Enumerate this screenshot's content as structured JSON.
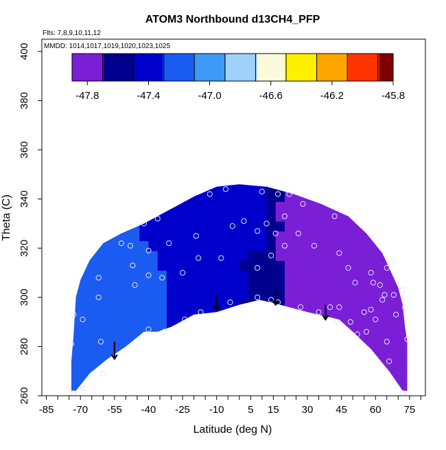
{
  "chart_data": {
    "type": "heatmap",
    "title": "ATOM3 Northbound d13CH4_PFP",
    "annotations": {
      "flights": "Flts: 7,8,9,10,11,12",
      "dates": "MMDD: 1014,1017,1019,1020,1023,1025"
    },
    "xlabel": "Latitude (deg N)",
    "ylabel": "Theta (C)",
    "xlim": [
      -87,
      82
    ],
    "ylim": [
      260,
      405
    ],
    "xticks": [
      -85,
      -70,
      -55,
      -40,
      -25,
      -10,
      5,
      15,
      30,
      45,
      60,
      75
    ],
    "yticks": [
      260,
      280,
      300,
      320,
      340,
      360,
      380,
      400
    ],
    "colorbar": {
      "range": [
        -47.9,
        -45.8
      ],
      "ticks": [
        -47.8,
        -47.4,
        -47.0,
        -46.6,
        -46.2,
        -45.8
      ],
      "tick_labels": [
        "-47.8",
        "-47.4",
        "-47.0",
        "-46.6",
        "-46.2",
        "-45.8"
      ],
      "breaks": [
        -47.9,
        -47.7,
        -47.5,
        -47.3,
        -47.1,
        -46.9,
        -46.7,
        -46.5,
        -46.3,
        -46.1,
        -45.9
      ],
      "colors": [
        "#7a1fd6",
        "#00008f",
        "#0000cc",
        "#1a5cf2",
        "#3f9af7",
        "#9fd1fa",
        "#fafadc",
        "#fff000",
        "#ffa500",
        "#ff3300",
        "#cc0000",
        "#7f0000"
      ]
    },
    "domain_upper": [
      [
        -74,
        274
      ],
      [
        -73,
        285
      ],
      [
        -72,
        300
      ],
      [
        -70,
        307
      ],
      [
        -66,
        315
      ],
      [
        -60,
        322
      ],
      [
        -52,
        326
      ],
      [
        -42,
        330
      ],
      [
        -30,
        336
      ],
      [
        -20,
        341
      ],
      [
        -10,
        345
      ],
      [
        0,
        346
      ],
      [
        12,
        345
      ],
      [
        24,
        342
      ],
      [
        36,
        338
      ],
      [
        48,
        333
      ],
      [
        56,
        326
      ],
      [
        63,
        318
      ],
      [
        67,
        310
      ],
      [
        70,
        304
      ],
      [
        72,
        297
      ],
      [
        73,
        288
      ],
      [
        74,
        282
      ]
    ],
    "domain_lower": [
      [
        74,
        262
      ],
      [
        72,
        262
      ],
      [
        66,
        270
      ],
      [
        58,
        279
      ],
      [
        50,
        286
      ],
      [
        44,
        291
      ],
      [
        30,
        294
      ],
      [
        18,
        297
      ],
      [
        9,
        299
      ],
      [
        0,
        297
      ],
      [
        -10,
        294
      ],
      [
        -20,
        293
      ],
      [
        -30,
        288
      ],
      [
        -36,
        286
      ],
      [
        -42,
        286
      ],
      [
        -50,
        280
      ],
      [
        -58,
        275
      ],
      [
        -66,
        269
      ],
      [
        -72,
        262
      ],
      [
        -74,
        262
      ]
    ],
    "field_points": [
      {
        "lat": -70,
        "theta": 300,
        "value": -47.2
      },
      {
        "lat": -60,
        "theta": 318,
        "value": -47.15
      },
      {
        "lat": -56,
        "theta": 290,
        "value": -47.2
      },
      {
        "lat": -45,
        "theta": 305,
        "value": -47.25
      },
      {
        "lat": -40,
        "theta": 325,
        "value": -47.3
      },
      {
        "lat": -30,
        "theta": 300,
        "value": -47.3
      },
      {
        "lat": -25,
        "theta": 330,
        "value": -47.4
      },
      {
        "lat": -15,
        "theta": 310,
        "value": -47.4
      },
      {
        "lat": -10,
        "theta": 338,
        "value": -47.45
      },
      {
        "lat": -5,
        "theta": 305,
        "value": -47.35
      },
      {
        "lat": 5,
        "theta": 325,
        "value": -47.4
      },
      {
        "lat": 12,
        "theta": 312,
        "value": -47.65
      },
      {
        "lat": 15,
        "theta": 300,
        "value": -47.7
      },
      {
        "lat": 22,
        "theta": 320,
        "value": -47.75
      },
      {
        "lat": 25,
        "theta": 335,
        "value": -47.75
      },
      {
        "lat": 30,
        "theta": 305,
        "value": -47.75
      },
      {
        "lat": 35,
        "theta": 325,
        "value": -47.7
      },
      {
        "lat": 40,
        "theta": 300,
        "value": -47.75
      },
      {
        "lat": 45,
        "theta": 315,
        "value": -47.75
      },
      {
        "lat": 50,
        "theta": 295,
        "value": -47.75
      },
      {
        "lat": 55,
        "theta": 290,
        "value": -47.85
      },
      {
        "lat": 60,
        "theta": 300,
        "value": -47.75
      },
      {
        "lat": 65,
        "theta": 285,
        "value": -47.75
      },
      {
        "lat": 70,
        "theta": 270,
        "value": -47.7
      },
      {
        "lat": 68,
        "theta": 300,
        "value": -47.7
      },
      {
        "lat": 0,
        "theta": 340,
        "value": -47.35
      }
    ],
    "samples": [
      {
        "lat": -73,
        "theta": 261
      },
      {
        "lat": -74,
        "theta": 281
      },
      {
        "lat": -73,
        "theta": 293
      },
      {
        "lat": -69,
        "theta": 263
      },
      {
        "lat": -69,
        "theta": 291
      },
      {
        "lat": -62,
        "theta": 308
      },
      {
        "lat": -62,
        "theta": 300
      },
      {
        "lat": -61,
        "theta": 282
      },
      {
        "lat": -60,
        "theta": 269
      },
      {
        "lat": -52,
        "theta": 322
      },
      {
        "lat": -48,
        "theta": 321
      },
      {
        "lat": -47,
        "theta": 313
      },
      {
        "lat": -46,
        "theta": 305
      },
      {
        "lat": -42,
        "theta": 330
      },
      {
        "lat": -40,
        "theta": 319
      },
      {
        "lat": -40,
        "theta": 309
      },
      {
        "lat": -40,
        "theta": 287
      },
      {
        "lat": -36,
        "theta": 332
      },
      {
        "lat": -34,
        "theta": 308
      },
      {
        "lat": -33,
        "theta": 286
      },
      {
        "lat": -31,
        "theta": 322
      },
      {
        "lat": -25,
        "theta": 310
      },
      {
        "lat": -24,
        "theta": 291
      },
      {
        "lat": -19,
        "theta": 325
      },
      {
        "lat": -18,
        "theta": 316
      },
      {
        "lat": -17,
        "theta": 294
      },
      {
        "lat": -13,
        "theta": 342
      },
      {
        "lat": -8,
        "theta": 316
      },
      {
        "lat": -6,
        "theta": 344
      },
      {
        "lat": -4,
        "theta": 298
      },
      {
        "lat": -3,
        "theta": 329
      },
      {
        "lat": 2,
        "theta": 331
      },
      {
        "lat": 8,
        "theta": 300
      },
      {
        "lat": 8,
        "theta": 312
      },
      {
        "lat": 8,
        "theta": 327
      },
      {
        "lat": 10,
        "theta": 343
      },
      {
        "lat": 12,
        "theta": 330
      },
      {
        "lat": 14,
        "theta": 299
      },
      {
        "lat": 14,
        "theta": 317
      },
      {
        "lat": 16,
        "theta": 326
      },
      {
        "lat": 17,
        "theta": 298
      },
      {
        "lat": 17,
        "theta": 342
      },
      {
        "lat": 20,
        "theta": 321
      },
      {
        "lat": 20,
        "theta": 333
      },
      {
        "lat": 22,
        "theta": 342
      },
      {
        "lat": 26,
        "theta": 326
      },
      {
        "lat": 27,
        "theta": 296
      },
      {
        "lat": 28,
        "theta": 338
      },
      {
        "lat": 33,
        "theta": 321
      },
      {
        "lat": 35,
        "theta": 294
      },
      {
        "lat": 40,
        "theta": 296
      },
      {
        "lat": 42,
        "theta": 333
      },
      {
        "lat": 43,
        "theta": 290
      },
      {
        "lat": 44,
        "theta": 318
      },
      {
        "lat": 44,
        "theta": 296
      },
      {
        "lat": 48,
        "theta": 312
      },
      {
        "lat": 49,
        "theta": 290
      },
      {
        "lat": 51,
        "theta": 306
      },
      {
        "lat": 52,
        "theta": 285
      },
      {
        "lat": 55,
        "theta": 294
      },
      {
        "lat": 56,
        "theta": 286
      },
      {
        "lat": 58,
        "theta": 310
      },
      {
        "lat": 58,
        "theta": 295
      },
      {
        "lat": 59,
        "theta": 306
      },
      {
        "lat": 60,
        "theta": 291
      },
      {
        "lat": 62,
        "theta": 305
      },
      {
        "lat": 63,
        "theta": 299
      },
      {
        "lat": 64,
        "theta": 301
      },
      {
        "lat": 65,
        "theta": 312
      },
      {
        "lat": 65,
        "theta": 282
      },
      {
        "lat": 66,
        "theta": 274
      },
      {
        "lat": 67,
        "theta": 314
      },
      {
        "lat": 68,
        "theta": 301
      },
      {
        "lat": 69,
        "theta": 293
      },
      {
        "lat": 72,
        "theta": 303
      },
      {
        "lat": 73,
        "theta": 296
      },
      {
        "lat": 74,
        "theta": 283
      },
      {
        "lat": 72,
        "theta": 261
      }
    ],
    "arrows": [
      {
        "lat": -55,
        "theta_from": 282,
        "theta_to": 275
      },
      {
        "lat": -10,
        "theta_from": 301,
        "theta_to": 295
      },
      {
        "lat": 16,
        "theta_from": 303,
        "theta_to": 297
      },
      {
        "lat": 38,
        "theta_from": 297,
        "theta_to": 291
      }
    ]
  }
}
